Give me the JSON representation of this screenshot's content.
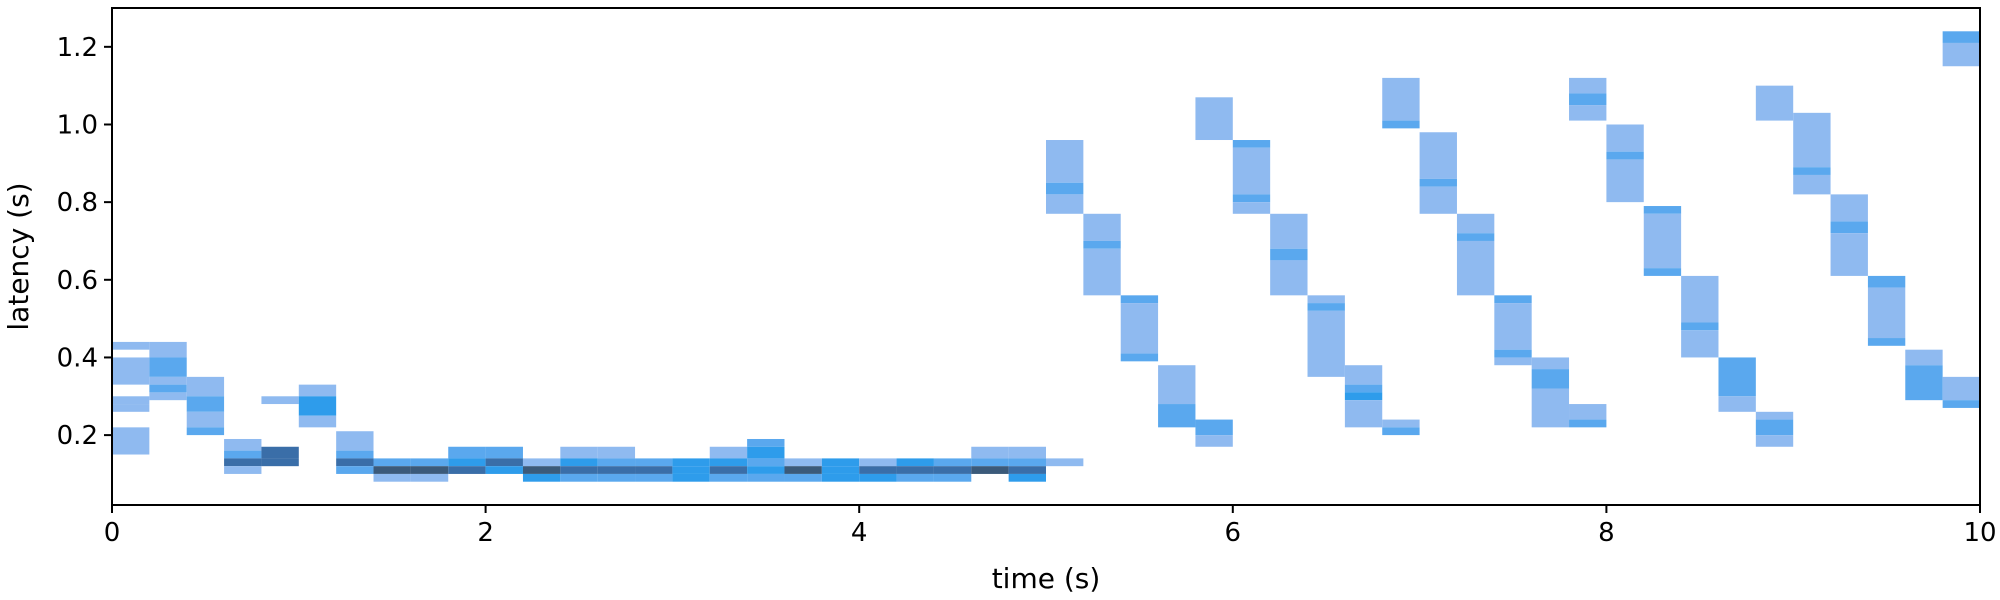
{
  "chart_data": {
    "type": "heatmap",
    "title": "",
    "xlabel": "time (s)",
    "ylabel": "latency (s)",
    "xlim": [
      0,
      10
    ],
    "ylim": [
      0.02,
      1.3
    ],
    "xticks": [
      0,
      2,
      4,
      6,
      8,
      10
    ],
    "yticks": [
      0.2,
      0.4,
      0.6,
      0.8,
      1.0,
      1.2
    ],
    "xtick_labels": [
      "0",
      "2",
      "4",
      "6",
      "8",
      "10"
    ],
    "ytick_labels": [
      "0.2",
      "0.4",
      "0.6",
      "0.8",
      "1.0",
      "1.2"
    ],
    "grid": false,
    "bin_width_s": 0.2,
    "colors": {
      "light": "#8fbaf0",
      "medium": "#5aa8ee",
      "strong": "#2e9ceb",
      "dark": "#3a6ea8",
      "darkest": "#3b5a7a"
    },
    "cells": [
      {
        "t": 0.0,
        "y0": 0.42,
        "y1": 0.44,
        "c": "light"
      },
      {
        "t": 0.0,
        "y0": 0.33,
        "y1": 0.4,
        "c": "light"
      },
      {
        "t": 0.0,
        "y0": 0.28,
        "y1": 0.3,
        "c": "light"
      },
      {
        "t": 0.0,
        "y0": 0.26,
        "y1": 0.28,
        "c": "light"
      },
      {
        "t": 0.0,
        "y0": 0.15,
        "y1": 0.22,
        "c": "light"
      },
      {
        "t": 0.2,
        "y0": 0.4,
        "y1": 0.44,
        "c": "light"
      },
      {
        "t": 0.2,
        "y0": 0.35,
        "y1": 0.4,
        "c": "medium"
      },
      {
        "t": 0.2,
        "y0": 0.33,
        "y1": 0.35,
        "c": "light"
      },
      {
        "t": 0.2,
        "y0": 0.31,
        "y1": 0.33,
        "c": "medium"
      },
      {
        "t": 0.2,
        "y0": 0.29,
        "y1": 0.31,
        "c": "light"
      },
      {
        "t": 0.4,
        "y0": 0.3,
        "y1": 0.35,
        "c": "light"
      },
      {
        "t": 0.4,
        "y0": 0.26,
        "y1": 0.3,
        "c": "medium"
      },
      {
        "t": 0.4,
        "y0": 0.22,
        "y1": 0.26,
        "c": "light"
      },
      {
        "t": 0.4,
        "y0": 0.2,
        "y1": 0.22,
        "c": "medium"
      },
      {
        "t": 0.6,
        "y0": 0.16,
        "y1": 0.19,
        "c": "light"
      },
      {
        "t": 0.6,
        "y0": 0.14,
        "y1": 0.16,
        "c": "medium"
      },
      {
        "t": 0.6,
        "y0": 0.12,
        "y1": 0.14,
        "c": "dark"
      },
      {
        "t": 0.6,
        "y0": 0.1,
        "y1": 0.12,
        "c": "light"
      },
      {
        "t": 0.8,
        "y0": 0.28,
        "y1": 0.3,
        "c": "light"
      },
      {
        "t": 0.8,
        "y0": 0.14,
        "y1": 0.17,
        "c": "dark"
      },
      {
        "t": 0.8,
        "y0": 0.12,
        "y1": 0.14,
        "c": "dark"
      },
      {
        "t": 1.0,
        "y0": 0.3,
        "y1": 0.33,
        "c": "light"
      },
      {
        "t": 1.0,
        "y0": 0.25,
        "y1": 0.3,
        "c": "strong"
      },
      {
        "t": 1.0,
        "y0": 0.22,
        "y1": 0.25,
        "c": "light"
      },
      {
        "t": 1.2,
        "y0": 0.16,
        "y1": 0.21,
        "c": "light"
      },
      {
        "t": 1.2,
        "y0": 0.14,
        "y1": 0.16,
        "c": "medium"
      },
      {
        "t": 1.2,
        "y0": 0.12,
        "y1": 0.14,
        "c": "dark"
      },
      {
        "t": 1.2,
        "y0": 0.1,
        "y1": 0.12,
        "c": "medium"
      },
      {
        "t": 1.4,
        "y0": 0.12,
        "y1": 0.14,
        "c": "medium"
      },
      {
        "t": 1.4,
        "y0": 0.1,
        "y1": 0.12,
        "c": "darkest"
      },
      {
        "t": 1.4,
        "y0": 0.08,
        "y1": 0.1,
        "c": "light"
      },
      {
        "t": 1.6,
        "y0": 0.12,
        "y1": 0.14,
        "c": "medium"
      },
      {
        "t": 1.6,
        "y0": 0.1,
        "y1": 0.12,
        "c": "darkest"
      },
      {
        "t": 1.6,
        "y0": 0.08,
        "y1": 0.1,
        "c": "light"
      },
      {
        "t": 1.8,
        "y0": 0.14,
        "y1": 0.17,
        "c": "medium"
      },
      {
        "t": 1.8,
        "y0": 0.12,
        "y1": 0.14,
        "c": "strong"
      },
      {
        "t": 1.8,
        "y0": 0.1,
        "y1": 0.12,
        "c": "dark"
      },
      {
        "t": 2.0,
        "y0": 0.14,
        "y1": 0.17,
        "c": "medium"
      },
      {
        "t": 2.0,
        "y0": 0.12,
        "y1": 0.14,
        "c": "dark"
      },
      {
        "t": 2.0,
        "y0": 0.1,
        "y1": 0.12,
        "c": "strong"
      },
      {
        "t": 2.2,
        "y0": 0.12,
        "y1": 0.14,
        "c": "light"
      },
      {
        "t": 2.2,
        "y0": 0.1,
        "y1": 0.12,
        "c": "darkest"
      },
      {
        "t": 2.2,
        "y0": 0.08,
        "y1": 0.1,
        "c": "strong"
      },
      {
        "t": 2.4,
        "y0": 0.14,
        "y1": 0.17,
        "c": "light"
      },
      {
        "t": 2.4,
        "y0": 0.12,
        "y1": 0.14,
        "c": "strong"
      },
      {
        "t": 2.4,
        "y0": 0.1,
        "y1": 0.12,
        "c": "dark"
      },
      {
        "t": 2.4,
        "y0": 0.08,
        "y1": 0.1,
        "c": "medium"
      },
      {
        "t": 2.6,
        "y0": 0.14,
        "y1": 0.17,
        "c": "light"
      },
      {
        "t": 2.6,
        "y0": 0.12,
        "y1": 0.14,
        "c": "medium"
      },
      {
        "t": 2.6,
        "y0": 0.1,
        "y1": 0.12,
        "c": "dark"
      },
      {
        "t": 2.6,
        "y0": 0.08,
        "y1": 0.1,
        "c": "medium"
      },
      {
        "t": 2.8,
        "y0": 0.12,
        "y1": 0.14,
        "c": "medium"
      },
      {
        "t": 2.8,
        "y0": 0.1,
        "y1": 0.12,
        "c": "dark"
      },
      {
        "t": 2.8,
        "y0": 0.08,
        "y1": 0.1,
        "c": "medium"
      },
      {
        "t": 3.0,
        "y0": 0.12,
        "y1": 0.14,
        "c": "strong"
      },
      {
        "t": 3.0,
        "y0": 0.1,
        "y1": 0.12,
        "c": "strong"
      },
      {
        "t": 3.0,
        "y0": 0.08,
        "y1": 0.1,
        "c": "strong"
      },
      {
        "t": 3.2,
        "y0": 0.14,
        "y1": 0.17,
        "c": "light"
      },
      {
        "t": 3.2,
        "y0": 0.12,
        "y1": 0.14,
        "c": "strong"
      },
      {
        "t": 3.2,
        "y0": 0.1,
        "y1": 0.12,
        "c": "dark"
      },
      {
        "t": 3.2,
        "y0": 0.08,
        "y1": 0.1,
        "c": "medium"
      },
      {
        "t": 3.4,
        "y0": 0.17,
        "y1": 0.19,
        "c": "medium"
      },
      {
        "t": 3.4,
        "y0": 0.14,
        "y1": 0.17,
        "c": "strong"
      },
      {
        "t": 3.4,
        "y0": 0.12,
        "y1": 0.14,
        "c": "medium"
      },
      {
        "t": 3.4,
        "y0": 0.1,
        "y1": 0.12,
        "c": "strong"
      },
      {
        "t": 3.4,
        "y0": 0.08,
        "y1": 0.1,
        "c": "medium"
      },
      {
        "t": 3.6,
        "y0": 0.12,
        "y1": 0.14,
        "c": "light"
      },
      {
        "t": 3.6,
        "y0": 0.1,
        "y1": 0.12,
        "c": "darkest"
      },
      {
        "t": 3.6,
        "y0": 0.08,
        "y1": 0.1,
        "c": "medium"
      },
      {
        "t": 3.8,
        "y0": 0.12,
        "y1": 0.14,
        "c": "strong"
      },
      {
        "t": 3.8,
        "y0": 0.1,
        "y1": 0.12,
        "c": "strong"
      },
      {
        "t": 3.8,
        "y0": 0.08,
        "y1": 0.1,
        "c": "strong"
      },
      {
        "t": 4.0,
        "y0": 0.12,
        "y1": 0.14,
        "c": "light"
      },
      {
        "t": 4.0,
        "y0": 0.1,
        "y1": 0.12,
        "c": "dark"
      },
      {
        "t": 4.0,
        "y0": 0.08,
        "y1": 0.1,
        "c": "strong"
      },
      {
        "t": 4.2,
        "y0": 0.12,
        "y1": 0.14,
        "c": "strong"
      },
      {
        "t": 4.2,
        "y0": 0.1,
        "y1": 0.12,
        "c": "dark"
      },
      {
        "t": 4.2,
        "y0": 0.08,
        "y1": 0.1,
        "c": "medium"
      },
      {
        "t": 4.4,
        "y0": 0.12,
        "y1": 0.14,
        "c": "medium"
      },
      {
        "t": 4.4,
        "y0": 0.1,
        "y1": 0.12,
        "c": "dark"
      },
      {
        "t": 4.4,
        "y0": 0.08,
        "y1": 0.1,
        "c": "medium"
      },
      {
        "t": 4.6,
        "y0": 0.14,
        "y1": 0.17,
        "c": "light"
      },
      {
        "t": 4.6,
        "y0": 0.12,
        "y1": 0.14,
        "c": "medium"
      },
      {
        "t": 4.6,
        "y0": 0.1,
        "y1": 0.12,
        "c": "darkest"
      },
      {
        "t": 4.8,
        "y0": 0.14,
        "y1": 0.17,
        "c": "light"
      },
      {
        "t": 4.8,
        "y0": 0.12,
        "y1": 0.14,
        "c": "medium"
      },
      {
        "t": 4.8,
        "y0": 0.1,
        "y1": 0.12,
        "c": "dark"
      },
      {
        "t": 4.8,
        "y0": 0.08,
        "y1": 0.1,
        "c": "strong"
      },
      {
        "t": 5.0,
        "y0": 0.85,
        "y1": 0.96,
        "c": "light"
      },
      {
        "t": 5.0,
        "y0": 0.82,
        "y1": 0.85,
        "c": "medium"
      },
      {
        "t": 5.0,
        "y0": 0.77,
        "y1": 0.82,
        "c": "light"
      },
      {
        "t": 5.0,
        "y0": 0.12,
        "y1": 0.14,
        "c": "light"
      },
      {
        "t": 5.2,
        "y0": 0.7,
        "y1": 0.77,
        "c": "light"
      },
      {
        "t": 5.2,
        "y0": 0.68,
        "y1": 0.7,
        "c": "medium"
      },
      {
        "t": 5.2,
        "y0": 0.56,
        "y1": 0.68,
        "c": "light"
      },
      {
        "t": 5.4,
        "y0": 0.54,
        "y1": 0.56,
        "c": "medium"
      },
      {
        "t": 5.4,
        "y0": 0.41,
        "y1": 0.54,
        "c": "light"
      },
      {
        "t": 5.4,
        "y0": 0.39,
        "y1": 0.41,
        "c": "medium"
      },
      {
        "t": 5.6,
        "y0": 0.28,
        "y1": 0.38,
        "c": "light"
      },
      {
        "t": 5.6,
        "y0": 0.22,
        "y1": 0.28,
        "c": "medium"
      },
      {
        "t": 5.8,
        "y0": 0.2,
        "y1": 0.24,
        "c": "medium"
      },
      {
        "t": 5.8,
        "y0": 0.17,
        "y1": 0.2,
        "c": "light"
      },
      {
        "t": 6.0,
        "y0": 0.94,
        "y1": 0.96,
        "c": "medium"
      },
      {
        "t": 6.0,
        "y0": 0.82,
        "y1": 0.94,
        "c": "light"
      },
      {
        "t": 6.0,
        "y0": 0.8,
        "y1": 0.82,
        "c": "medium"
      },
      {
        "t": 6.0,
        "y0": 0.77,
        "y1": 0.8,
        "c": "light"
      },
      {
        "t": 5.8,
        "y0": 0.96,
        "y1": 1.07,
        "c": "light"
      },
      {
        "t": 6.2,
        "y0": 0.68,
        "y1": 0.77,
        "c": "light"
      },
      {
        "t": 6.2,
        "y0": 0.65,
        "y1": 0.68,
        "c": "medium"
      },
      {
        "t": 6.2,
        "y0": 0.56,
        "y1": 0.65,
        "c": "light"
      },
      {
        "t": 6.4,
        "y0": 0.54,
        "y1": 0.56,
        "c": "light"
      },
      {
        "t": 6.4,
        "y0": 0.52,
        "y1": 0.54,
        "c": "medium"
      },
      {
        "t": 6.4,
        "y0": 0.35,
        "y1": 0.52,
        "c": "light"
      },
      {
        "t": 6.6,
        "y0": 0.33,
        "y1": 0.38,
        "c": "light"
      },
      {
        "t": 6.6,
        "y0": 0.31,
        "y1": 0.33,
        "c": "medium"
      },
      {
        "t": 6.6,
        "y0": 0.29,
        "y1": 0.31,
        "c": "strong"
      },
      {
        "t": 6.6,
        "y0": 0.22,
        "y1": 0.29,
        "c": "light"
      },
      {
        "t": 6.8,
        "y0": 0.22,
        "y1": 0.24,
        "c": "light"
      },
      {
        "t": 6.8,
        "y0": 0.2,
        "y1": 0.22,
        "c": "medium"
      },
      {
        "t": 6.8,
        "y0": 1.01,
        "y1": 1.12,
        "c": "light"
      },
      {
        "t": 6.8,
        "y0": 0.99,
        "y1": 1.01,
        "c": "medium"
      },
      {
        "t": 7.0,
        "y0": 0.86,
        "y1": 0.98,
        "c": "light"
      },
      {
        "t": 7.0,
        "y0": 0.84,
        "y1": 0.86,
        "c": "medium"
      },
      {
        "t": 7.0,
        "y0": 0.77,
        "y1": 0.84,
        "c": "light"
      },
      {
        "t": 7.2,
        "y0": 0.72,
        "y1": 0.77,
        "c": "light"
      },
      {
        "t": 7.2,
        "y0": 0.7,
        "y1": 0.72,
        "c": "medium"
      },
      {
        "t": 7.2,
        "y0": 0.56,
        "y1": 0.7,
        "c": "light"
      },
      {
        "t": 7.4,
        "y0": 0.54,
        "y1": 0.56,
        "c": "medium"
      },
      {
        "t": 7.4,
        "y0": 0.42,
        "y1": 0.54,
        "c": "light"
      },
      {
        "t": 7.4,
        "y0": 0.4,
        "y1": 0.42,
        "c": "medium"
      },
      {
        "t": 7.4,
        "y0": 0.38,
        "y1": 0.4,
        "c": "light"
      },
      {
        "t": 7.6,
        "y0": 0.37,
        "y1": 0.4,
        "c": "light"
      },
      {
        "t": 7.6,
        "y0": 0.32,
        "y1": 0.37,
        "c": "medium"
      },
      {
        "t": 7.6,
        "y0": 0.22,
        "y1": 0.32,
        "c": "light"
      },
      {
        "t": 7.8,
        "y0": 0.24,
        "y1": 0.28,
        "c": "light"
      },
      {
        "t": 7.8,
        "y0": 0.22,
        "y1": 0.24,
        "c": "medium"
      },
      {
        "t": 7.8,
        "y0": 1.08,
        "y1": 1.12,
        "c": "light"
      },
      {
        "t": 7.8,
        "y0": 1.05,
        "y1": 1.08,
        "c": "medium"
      },
      {
        "t": 7.8,
        "y0": 1.01,
        "y1": 1.05,
        "c": "light"
      },
      {
        "t": 8.0,
        "y0": 0.93,
        "y1": 1.0,
        "c": "light"
      },
      {
        "t": 8.0,
        "y0": 0.91,
        "y1": 0.93,
        "c": "medium"
      },
      {
        "t": 8.0,
        "y0": 0.8,
        "y1": 0.91,
        "c": "light"
      },
      {
        "t": 8.2,
        "y0": 0.77,
        "y1": 0.79,
        "c": "medium"
      },
      {
        "t": 8.2,
        "y0": 0.63,
        "y1": 0.77,
        "c": "light"
      },
      {
        "t": 8.2,
        "y0": 0.61,
        "y1": 0.63,
        "c": "medium"
      },
      {
        "t": 8.4,
        "y0": 0.49,
        "y1": 0.61,
        "c": "light"
      },
      {
        "t": 8.4,
        "y0": 0.47,
        "y1": 0.49,
        "c": "medium"
      },
      {
        "t": 8.4,
        "y0": 0.4,
        "y1": 0.47,
        "c": "light"
      },
      {
        "t": 8.6,
        "y0": 0.3,
        "y1": 0.4,
        "c": "medium"
      },
      {
        "t": 8.6,
        "y0": 0.26,
        "y1": 0.3,
        "c": "light"
      },
      {
        "t": 8.8,
        "y0": 0.24,
        "y1": 0.26,
        "c": "light"
      },
      {
        "t": 8.8,
        "y0": 0.2,
        "y1": 0.24,
        "c": "medium"
      },
      {
        "t": 8.8,
        "y0": 0.17,
        "y1": 0.2,
        "c": "light"
      },
      {
        "t": 8.8,
        "y0": 1.01,
        "y1": 1.1,
        "c": "light"
      },
      {
        "t": 9.0,
        "y0": 0.89,
        "y1": 1.03,
        "c": "light"
      },
      {
        "t": 9.0,
        "y0": 0.87,
        "y1": 0.89,
        "c": "medium"
      },
      {
        "t": 9.0,
        "y0": 0.82,
        "y1": 0.87,
        "c": "light"
      },
      {
        "t": 9.2,
        "y0": 0.75,
        "y1": 0.82,
        "c": "light"
      },
      {
        "t": 9.2,
        "y0": 0.72,
        "y1": 0.75,
        "c": "medium"
      },
      {
        "t": 9.2,
        "y0": 0.61,
        "y1": 0.72,
        "c": "light"
      },
      {
        "t": 9.4,
        "y0": 0.58,
        "y1": 0.61,
        "c": "medium"
      },
      {
        "t": 9.4,
        "y0": 0.45,
        "y1": 0.58,
        "c": "light"
      },
      {
        "t": 9.4,
        "y0": 0.43,
        "y1": 0.45,
        "c": "medium"
      },
      {
        "t": 9.6,
        "y0": 0.38,
        "y1": 0.42,
        "c": "light"
      },
      {
        "t": 9.6,
        "y0": 0.29,
        "y1": 0.38,
        "c": "medium"
      },
      {
        "t": 9.8,
        "y0": 0.29,
        "y1": 0.35,
        "c": "light"
      },
      {
        "t": 9.8,
        "y0": 0.27,
        "y1": 0.29,
        "c": "medium"
      },
      {
        "t": 9.8,
        "y0": 1.21,
        "y1": 1.24,
        "c": "medium"
      },
      {
        "t": 9.8,
        "y0": 1.15,
        "y1": 1.21,
        "c": "light"
      }
    ]
  }
}
